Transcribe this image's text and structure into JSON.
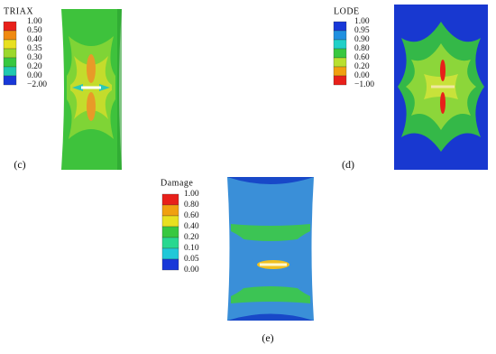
{
  "panels": [
    {
      "legend": {
        "title": "TRIAX",
        "labels": [
          "1.00",
          "0.50",
          "0.40",
          "0.35",
          "0.30",
          "0.20",
          "0.00",
          "−2.00"
        ],
        "colors": [
          "#e8201a",
          "#f08a10",
          "#e8e020",
          "#9cd82c",
          "#38c840",
          "#20c8b0",
          "#1838d8"
        ]
      },
      "label": "(c)"
    },
    {
      "legend": {
        "title": "LODE",
        "labels": [
          "1.00",
          "0.95",
          "0.90",
          "0.80",
          "0.60",
          "0.20",
          "0.00",
          "−1.00"
        ],
        "colors": [
          "#1838d8",
          "#2090e0",
          "#20d0c8",
          "#38c840",
          "#b8e030",
          "#f0a010",
          "#e8201a"
        ]
      },
      "label": "(d)"
    },
    {
      "legend": {
        "title": "Damage",
        "labels": [
          "1.00",
          "0.80",
          "0.60",
          "0.40",
          "0.20",
          "0.10",
          "0.05",
          "0.00"
        ],
        "colors": [
          "#e8201a",
          "#f0a010",
          "#e8e020",
          "#38c840",
          "#28d890",
          "#20c8d8",
          "#1838d8"
        ]
      },
      "label": "(e)"
    }
  ]
}
